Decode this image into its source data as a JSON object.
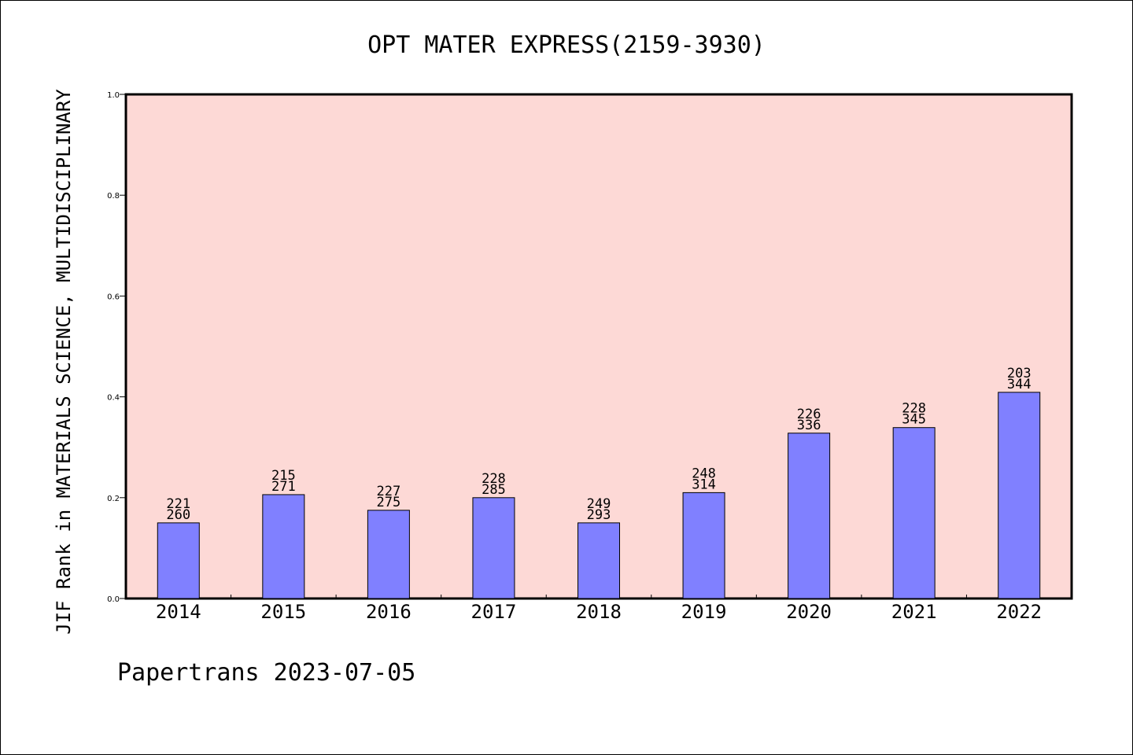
{
  "chart_data": {
    "type": "bar",
    "title": "OPT MATER EXPRESS(2159-3930)",
    "ylabel": "JIF Rank in MATERIALS SCIENCE, MULTIDISCIPLINARY",
    "xlabel": "",
    "categories": [
      "2014",
      "2015",
      "2016",
      "2017",
      "2018",
      "2019",
      "2020",
      "2021",
      "2022"
    ],
    "values": [
      0.15,
      0.206,
      0.175,
      0.2,
      0.15,
      0.21,
      0.328,
      0.339,
      0.409
    ],
    "labels_top": [
      "221",
      "215",
      "227",
      "228",
      "249",
      "248",
      "226",
      "228",
      "203"
    ],
    "labels_bottom": [
      "260",
      "271",
      "275",
      "285",
      "293",
      "314",
      "336",
      "345",
      "344"
    ],
    "ylim": [
      0,
      1.0
    ],
    "yticks": [
      "0.0",
      "0.2",
      "0.4",
      "0.6",
      "0.8",
      "1.0"
    ],
    "grid": false,
    "colors": {
      "plot_background": "#fdd9d6",
      "bar_fill": "#8080ff",
      "bar_stroke": "#000000",
      "axis": "#000000"
    }
  },
  "footer": "Papertrans 2023-07-05"
}
